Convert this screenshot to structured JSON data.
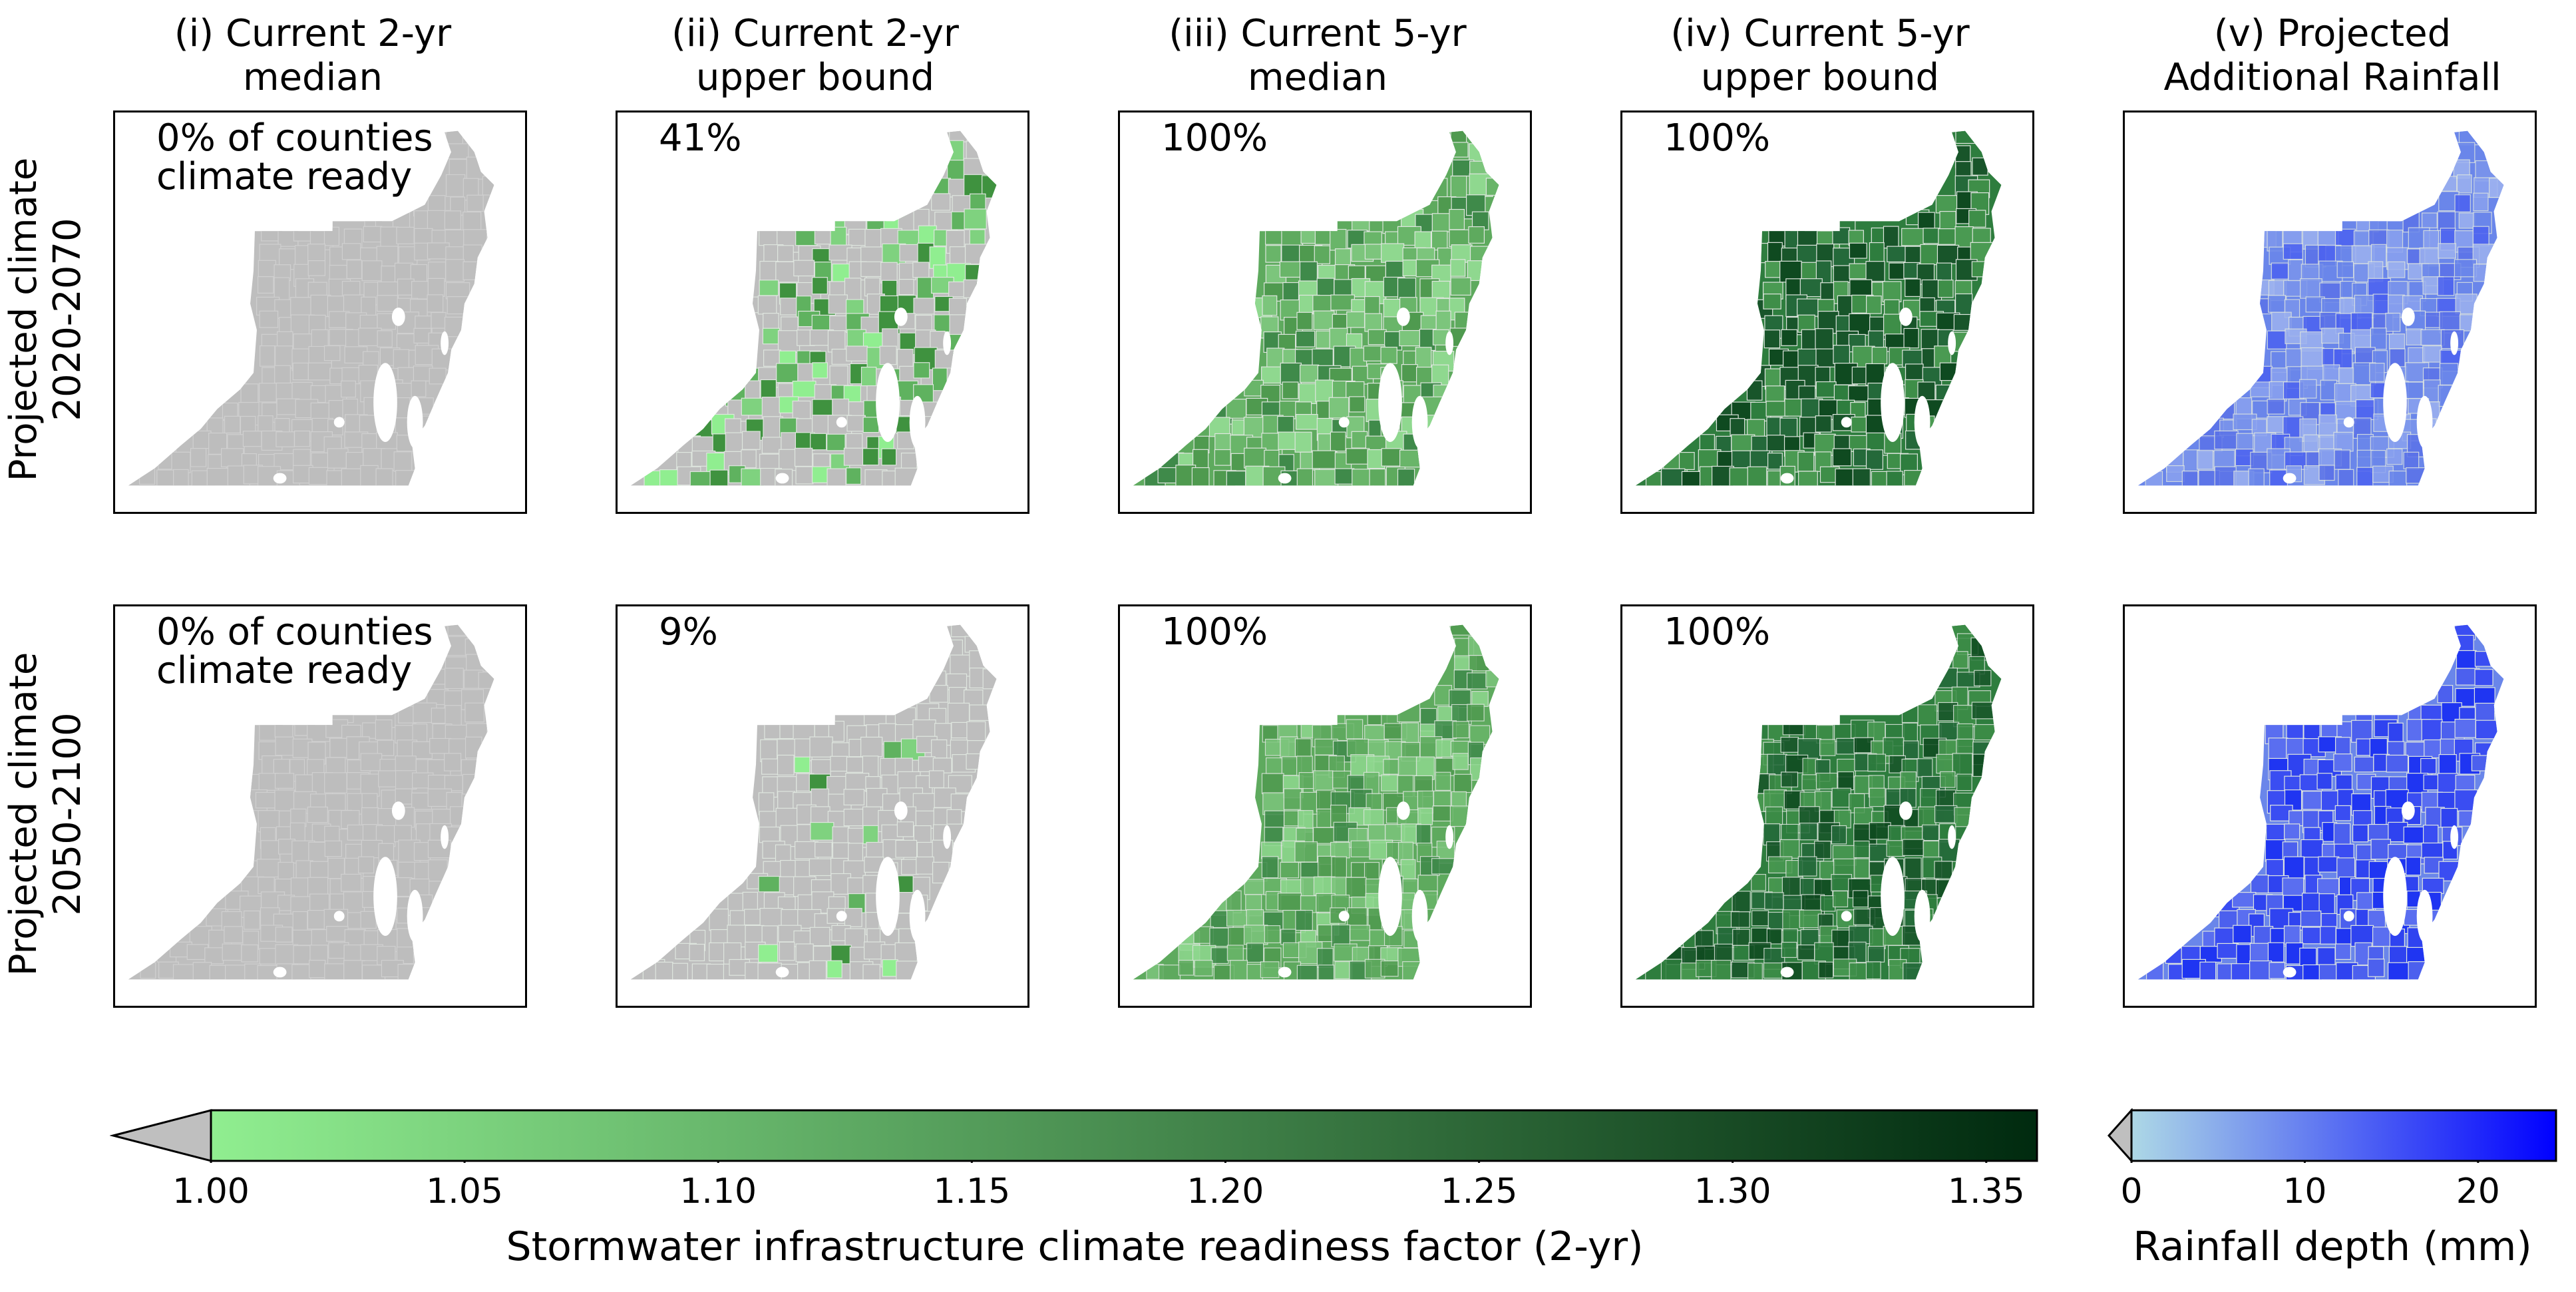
{
  "columns": [
    {
      "title": "(i) Current 2-yr\nmedian",
      "shade": "gray"
    },
    {
      "title": "(ii) Current 2-yr\nupper bound",
      "shade": "light"
    },
    {
      "title": "(iii) Current 5-yr\nmedian",
      "shade": "mid"
    },
    {
      "title": "(iv) Current 5-yr\nupper bound",
      "shade": "dark"
    },
    {
      "title": "(v) Projected\nAdditional Rainfall",
      "shade": "blue"
    }
  ],
  "rows": [
    {
      "label": "Projected climate\n2020-2070",
      "percentages": [
        "0% of counties\nclimate ready",
        "41%",
        "100%",
        "100%",
        ""
      ]
    },
    {
      "label": "Projected climate\n2050-2100",
      "percentages": [
        "0% of counties\nclimate ready",
        "9%",
        "100%",
        "100%",
        ""
      ]
    }
  ],
  "colorbar_readiness": {
    "label": "Stormwater infrastructure climate readiness factor (2-yr)",
    "ticks": [
      "1.00",
      "1.05",
      "1.10",
      "1.15",
      "1.20",
      "1.25",
      "1.30",
      "1.35"
    ],
    "tick_values": [
      1.0,
      1.05,
      1.1,
      1.15,
      1.2,
      1.25,
      1.3,
      1.35
    ],
    "range": [
      1.0,
      1.36
    ],
    "colors": {
      "below": "#bfbfbf",
      "low": "#90ee90",
      "high": "#002a0f"
    }
  },
  "colorbar_rainfall": {
    "label": "Rainfall depth (mm)",
    "ticks": [
      "0",
      "10",
      "20"
    ],
    "tick_values": [
      0,
      10,
      20
    ],
    "range": [
      0,
      24.5
    ],
    "colors": {
      "below": "#bfbfbf",
      "low": "#add8e6",
      "high": "#0000ff"
    }
  },
  "map_palettes": {
    "gray": [
      "#bebebe",
      "#bdbdbd"
    ],
    "light": [
      "#bebebe",
      "#90ee90",
      "#7fd27f",
      "#5fb25f",
      "#3f923f"
    ],
    "mid": [
      "#5eaa5e",
      "#69b569",
      "#4f9a4f",
      "#7cc57c",
      "#8fd88f",
      "#3f8a4a"
    ],
    "dark": [
      "#2e7d3e",
      "#3e8e48",
      "#24693a",
      "#18552a",
      "#4a9a52",
      "#0f4a20"
    ],
    "blue": [
      "#6a86ea",
      "#7b95ec",
      "#5b72e8",
      "#8aa2ef",
      "#4c62f0",
      "#9db2ef"
    ]
  }
}
